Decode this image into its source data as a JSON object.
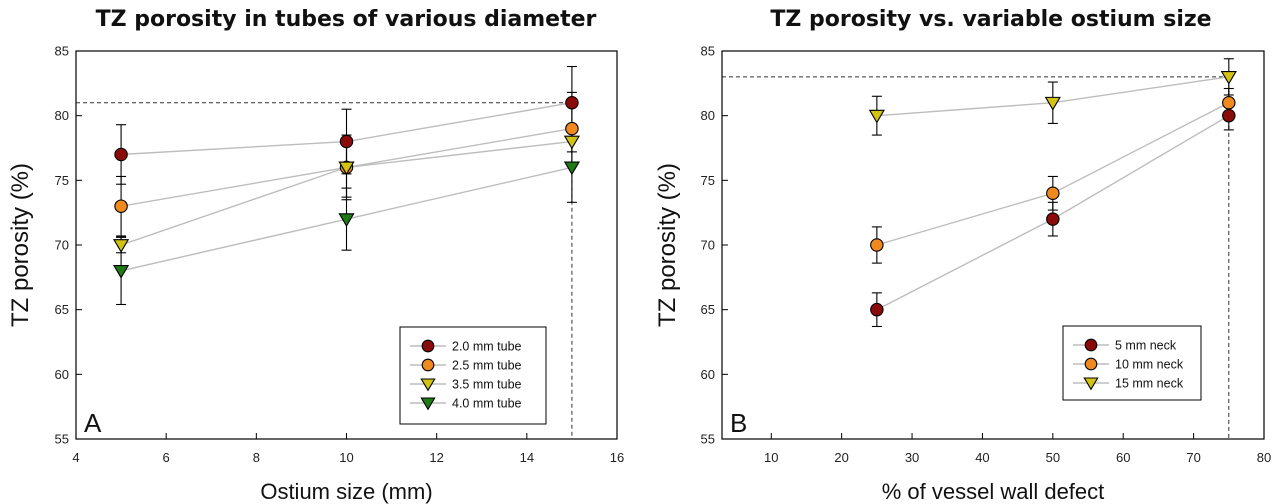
{
  "chart_data": [
    {
      "type": "line",
      "panel_letter": "A",
      "title": "TZ porosity in tubes of various diameter",
      "xlabel": "Ostium size (mm)",
      "ylabel": "TZ porosity (%)",
      "xlim": [
        4,
        16
      ],
      "ylim": [
        55,
        85
      ],
      "xticks": [
        4,
        6,
        8,
        10,
        12,
        14,
        16
      ],
      "yticks": [
        55,
        60,
        65,
        70,
        75,
        80,
        85
      ],
      "grid": false,
      "legend_position": "bottom-right",
      "reference_lines": {
        "y": 81,
        "x": 15
      },
      "series": [
        {
          "name": "2.0 mm tube",
          "marker": "circle",
          "color": "#8b0a0a",
          "x": [
            5,
            10,
            15
          ],
          "y": [
            77,
            78,
            81
          ],
          "err": [
            2.3,
            2.5,
            2.8
          ]
        },
        {
          "name": "2.5 mm tube",
          "marker": "circle",
          "color": "#f08a1e",
          "x": [
            5,
            10,
            15
          ],
          "y": [
            73,
            76,
            79
          ],
          "err": [
            2.3,
            2.5,
            2.8
          ]
        },
        {
          "name": "3.5 mm tube",
          "marker": "triangle-down",
          "color": "#d2c313",
          "x": [
            5,
            10,
            15
          ],
          "y": [
            70,
            76,
            78
          ],
          "err": [
            0.6,
            2.3,
            0.8
          ]
        },
        {
          "name": "4.0 mm tube",
          "marker": "triangle-down",
          "color": "#1f7a16",
          "x": [
            5,
            10,
            15
          ],
          "y": [
            68,
            72,
            76
          ],
          "err": [
            2.6,
            2.4,
            2.7
          ]
        }
      ]
    },
    {
      "type": "line",
      "panel_letter": "B",
      "title": "TZ porosity vs. variable ostium size",
      "xlabel": "% of vessel wall defect",
      "ylabel": "TZ porosity (%)",
      "xlim": [
        3,
        80
      ],
      "ylim": [
        55,
        85
      ],
      "xticks": [
        10,
        20,
        30,
        40,
        50,
        60,
        70,
        80
      ],
      "yticks": [
        55,
        60,
        65,
        70,
        75,
        80,
        85
      ],
      "grid": false,
      "legend_position": "bottom-right",
      "reference_lines": {
        "y": 83,
        "x": 75
      },
      "series": [
        {
          "name": "5 mm neck",
          "marker": "circle",
          "color": "#8b0a0a",
          "x": [
            25,
            50,
            75
          ],
          "y": [
            65,
            72,
            80
          ],
          "err": [
            1.3,
            1.3,
            1.1
          ]
        },
        {
          "name": "10 mm neck",
          "marker": "circle",
          "color": "#f08a1e",
          "x": [
            25,
            50,
            75
          ],
          "y": [
            70,
            74,
            81
          ],
          "err": [
            1.4,
            1.3,
            1.1
          ]
        },
        {
          "name": "15 mm neck",
          "marker": "triangle-down",
          "color": "#d2c313",
          "x": [
            25,
            50,
            75
          ],
          "y": [
            80,
            81,
            83
          ],
          "err": [
            1.5,
            1.6,
            1.4
          ]
        }
      ]
    }
  ]
}
